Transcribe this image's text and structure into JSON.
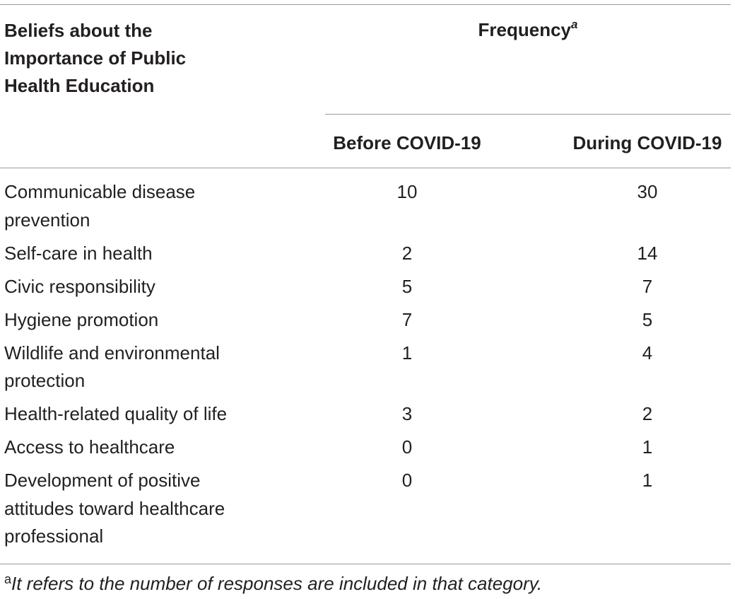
{
  "table": {
    "stub_header": "Beliefs about the Importance of Public Health Education",
    "spanner": {
      "label": "Frequency",
      "marker": "a"
    },
    "columns": [
      "Before COVID-19",
      "During COVID-19"
    ],
    "rows": [
      {
        "label": "Communicable disease prevention",
        "before": "10",
        "during": "30"
      },
      {
        "label": "Self-care in health",
        "before": "2",
        "during": "14"
      },
      {
        "label": "Civic responsibility",
        "before": "5",
        "during": "7"
      },
      {
        "label": "Hygiene promotion",
        "before": "7",
        "during": "5"
      },
      {
        "label": "Wildlife and environmental protection",
        "before": "1",
        "during": "4"
      },
      {
        "label": "Health-related quality of life",
        "before": "3",
        "during": "2"
      },
      {
        "label": "Access to healthcare",
        "before": "0",
        "during": "1"
      },
      {
        "label": "Development of positive attitudes toward healthcare professional",
        "before": "0",
        "during": "1"
      }
    ],
    "footnote": {
      "marker": "a",
      "text": "It refers to the number of responses are included in that category."
    }
  }
}
